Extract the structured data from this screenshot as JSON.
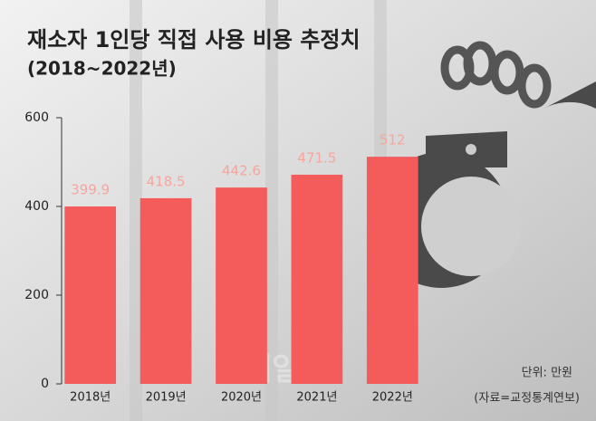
{
  "chart_data": {
    "type": "bar",
    "title": "재소자 1인당 직접 사용 비용 추정치",
    "subtitle": "(2018~2022년)",
    "categories": [
      "2018년",
      "2019년",
      "2020년",
      "2021년",
      "2022년"
    ],
    "values": [
      399.9,
      418.5,
      442.6,
      471.5,
      512
    ],
    "color": "#f45b5b",
    "ylim": [
      0,
      600
    ],
    "yticks": [
      0,
      200,
      400,
      600
    ],
    "unit_note": "단위: 만원",
    "source": "(자료=교정통계연보)",
    "watermark": "이데일리"
  }
}
